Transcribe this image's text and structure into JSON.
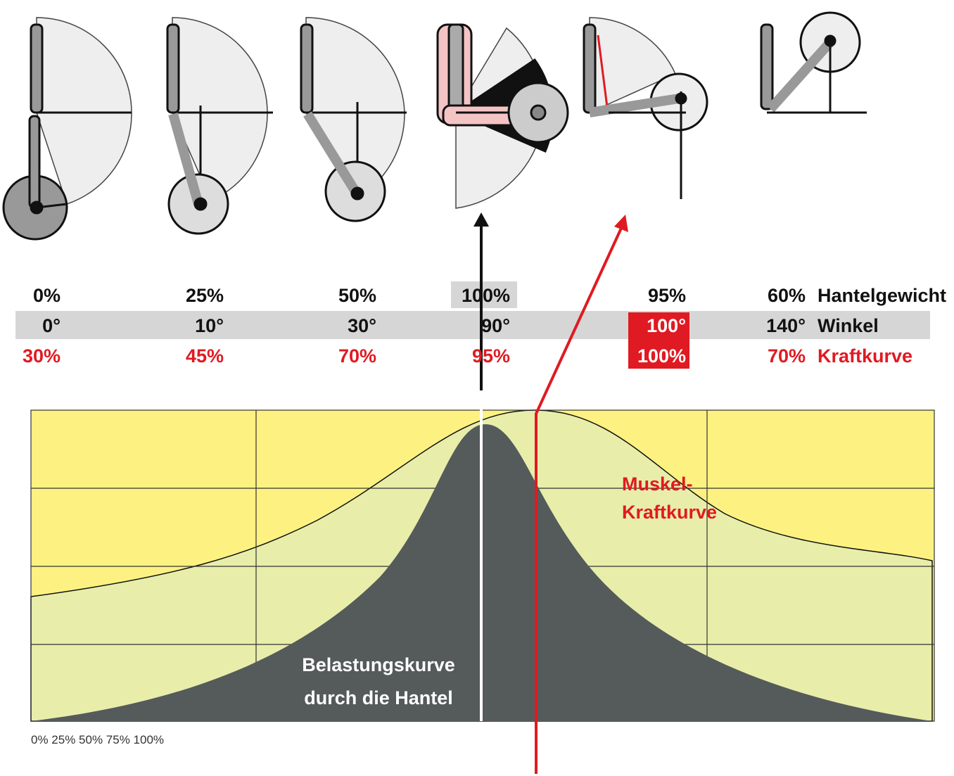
{
  "table": {
    "rows": [
      {
        "label": "Hantelgewicht",
        "cells": [
          "0%",
          "25%",
          "50%",
          "100%",
          "95%",
          "60%"
        ]
      },
      {
        "label": "Winkel",
        "cells": [
          "0°",
          "10°",
          "30°",
          "90°",
          "100°",
          "140°"
        ]
      },
      {
        "label": "Kraftkurve",
        "cells": [
          "30%",
          "45%",
          "70%",
          "95%",
          "100%",
          "70%"
        ]
      }
    ]
  },
  "chart": {
    "muscle_label": [
      "Muskel-",
      "Kraftkurve"
    ],
    "load_label": [
      "Belastungskurve",
      "durch die Hantel"
    ],
    "axis_text": "0% 25% 50% 75% 100%"
  }
}
